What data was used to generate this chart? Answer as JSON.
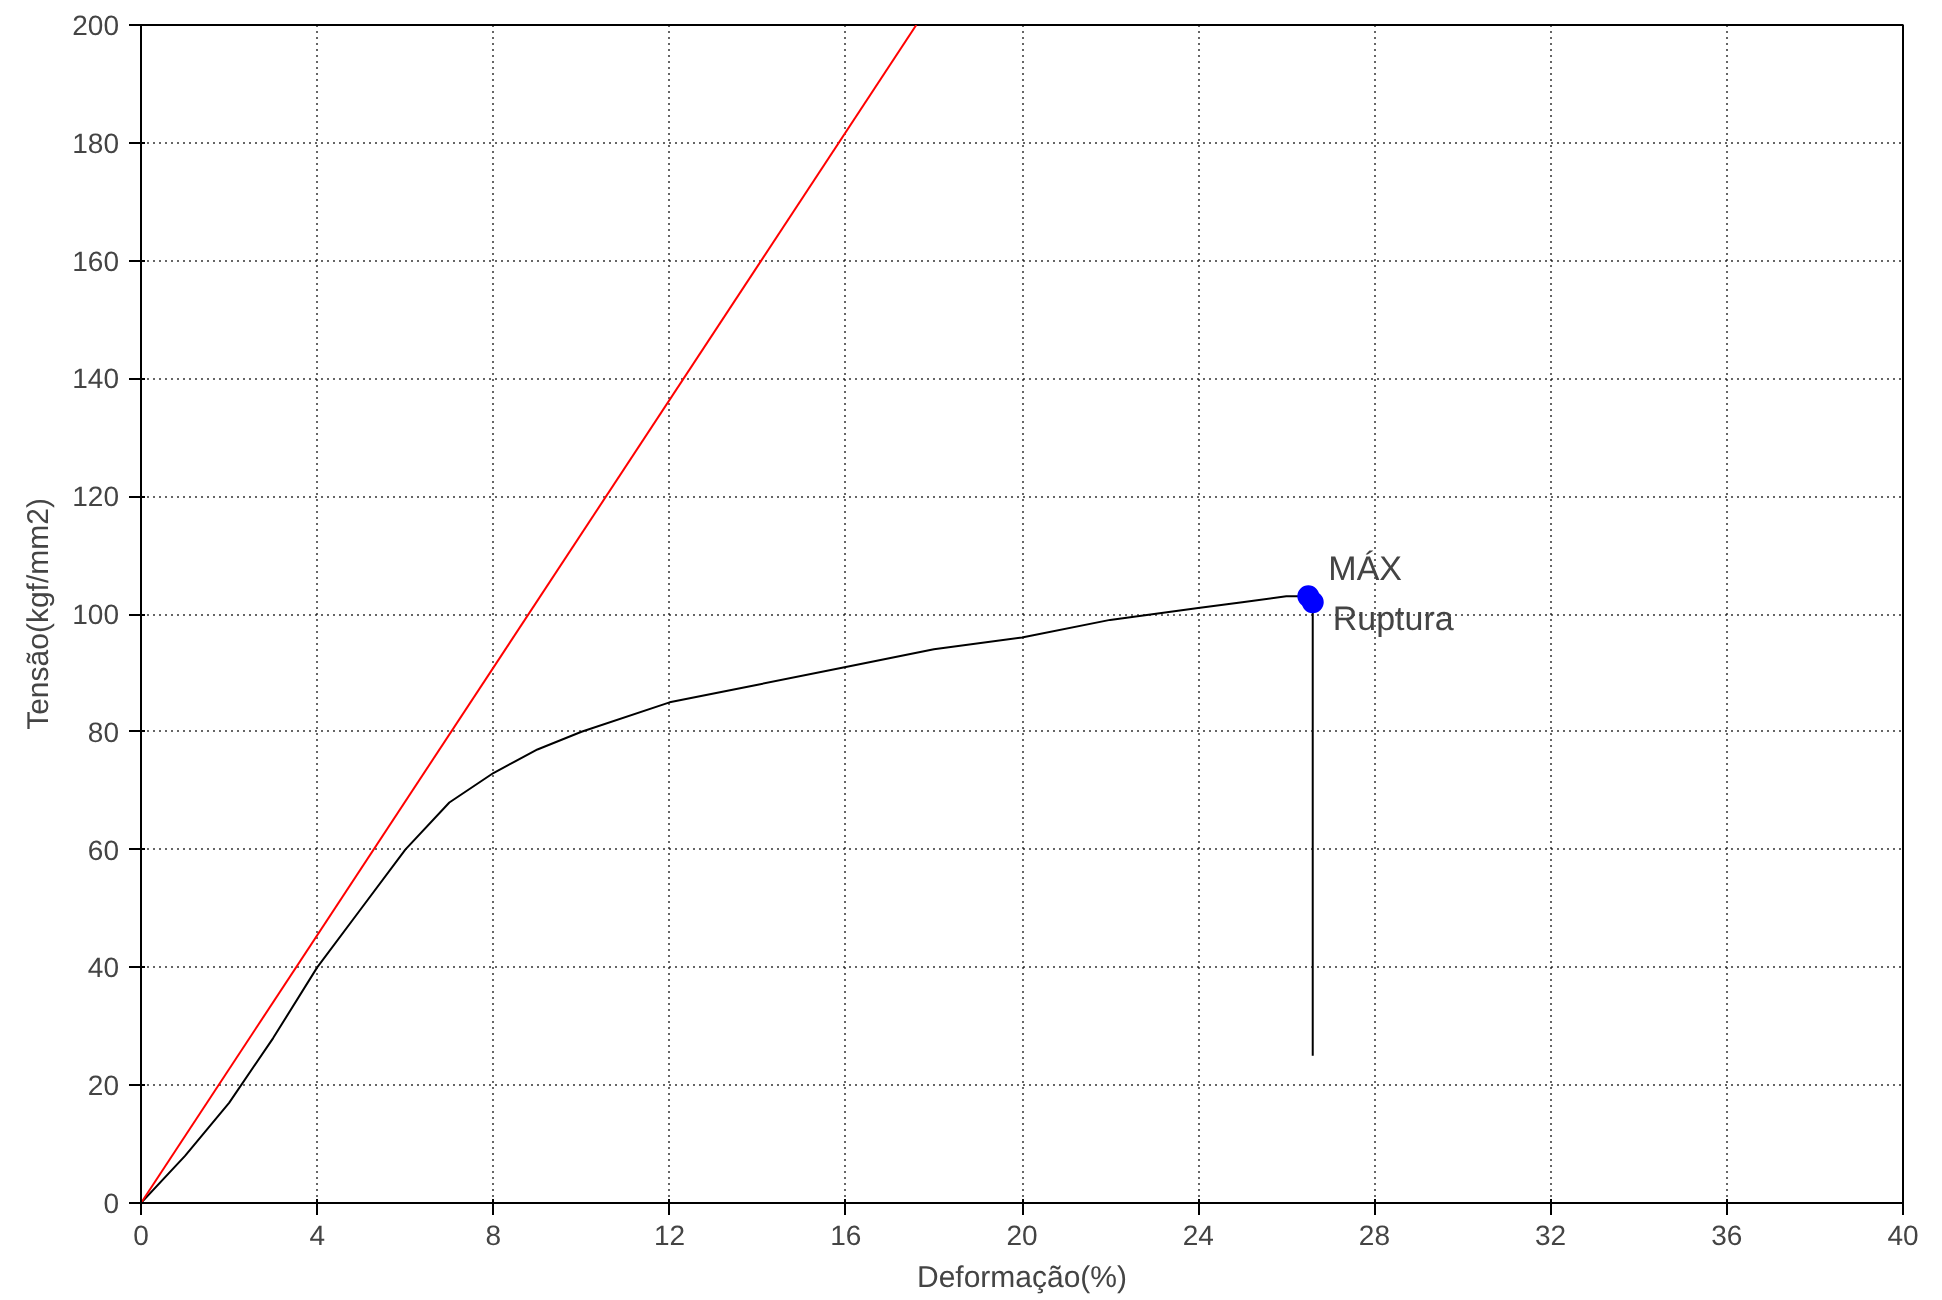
{
  "chart_data": {
    "type": "line",
    "xlabel": "Deformação(%)",
    "ylabel": "Tensão(kgf/mm2)",
    "xlim": [
      0,
      40
    ],
    "ylim": [
      0,
      200
    ],
    "xticks": [
      0,
      4,
      8,
      12,
      16,
      20,
      24,
      28,
      32,
      36,
      40
    ],
    "yticks": [
      0,
      20,
      40,
      60,
      80,
      100,
      120,
      140,
      160,
      180,
      200
    ],
    "grid": true,
    "marker": "none",
    "line_style": "solid",
    "series": [
      {
        "color": "#000000",
        "x": [
          0,
          1,
          2,
          3,
          4,
          5,
          6,
          7,
          8,
          9,
          10,
          12,
          14,
          16,
          18,
          20,
          22,
          24,
          25,
          26,
          26.5,
          26.6,
          26.6
        ],
        "values": [
          0,
          8,
          17,
          28,
          40,
          50,
          60,
          68,
          73,
          77,
          80,
          85,
          88,
          91,
          94,
          96,
          99,
          101,
          102,
          103,
          103,
          102,
          25
        ]
      },
      {
        "color": "#ff0000",
        "x": [
          0,
          17.6
        ],
        "values": [
          0,
          200
        ]
      },
      {
        "type": "scatter",
        "marker": "circle",
        "color": "#0000ff",
        "x": [
          26.5,
          26.6
        ],
        "values": [
          103,
          102
        ]
      }
    ],
    "annotations": [
      {
        "text": "MÁX",
        "x": 26.5,
        "y": 103
      },
      {
        "text": "Ruptura",
        "x": 26.6,
        "y": 102
      }
    ]
  }
}
